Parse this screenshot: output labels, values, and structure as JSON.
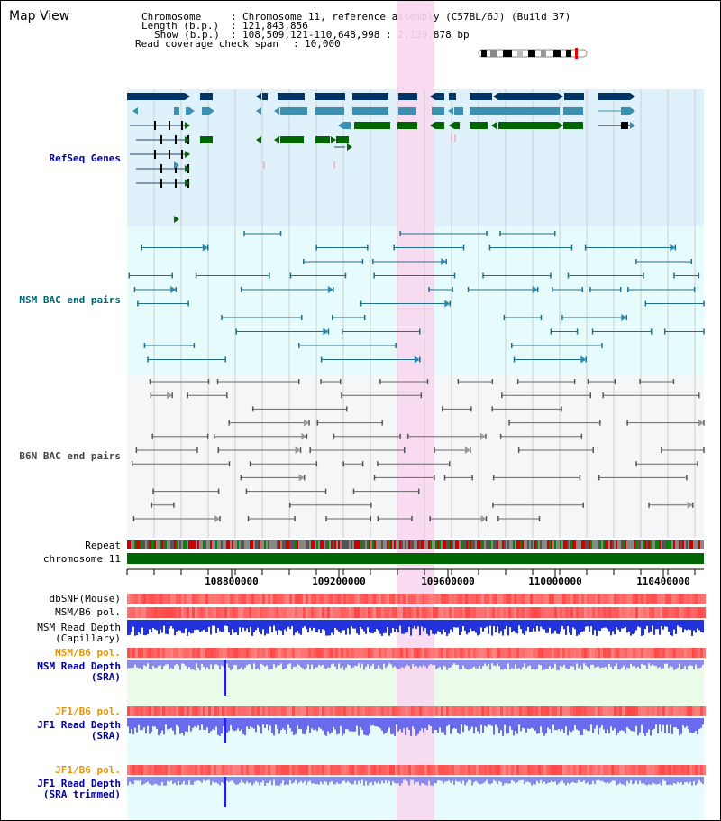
{
  "window_title": "Map View",
  "header": {
    "chromosome_label": "Chromosome",
    "chromosome_value": "Chromosome 11, reference assembly (C57BL/6J) (Build 37)",
    "length_label": "Length (b.p.)",
    "length_value": "121,843,856",
    "show_label": "Show (b.p.)",
    "show_value": "108,509,121-110,648,998 : 2,139,878 bp",
    "span_label": "Read coverage check span",
    "span_value": "10,000"
  },
  "tracks": {
    "refseq": "RefSeq Genes",
    "msm_bac": "MSM BAC end pairs",
    "b6n_bac": "B6N BAC end pairs",
    "repeat": "Repeat",
    "chromosome": "chromosome 11",
    "dbsnp": "dbSNP(Mouse)",
    "msm_b6_pol_1": "MSM/B6 pol.",
    "msm_read_depth_cap_1": "MSM Read Depth",
    "msm_read_depth_cap_2": "(Capillary)",
    "msm_b6_pol_2": "MSM/B6 pol.",
    "msm_read_depth_sra_1": "MSM Read Depth",
    "msm_read_depth_sra_2": "(SRA)",
    "jf1_b6_pol_1": "JF1/B6 pol.",
    "jf1_read_depth_sra_1": "JF1 Read Depth",
    "jf1_read_depth_sra_2": "(SRA)",
    "jf1_b6_pol_2": "JF1/B6 pol.",
    "jf1_read_depth_trim_1": "JF1 Read Depth",
    "jf1_read_depth_trim_2": "(SRA trimmed)"
  },
  "axis_ticks": [
    "108800000",
    "109200000",
    "109600000",
    "110000000",
    "110400000"
  ],
  "colors": {
    "refseq_bg": "#dff1fb",
    "msm_bg": "#e6fbfb",
    "b6n_bg": "#f4f6f8",
    "highlight": "#f8d8f0",
    "refseq_label": "#000099",
    "msm_label": "#006677",
    "b6n_label": "#444444",
    "orange_label": "#e69500",
    "blue_label": "#000099",
    "chrom_bar": "#006600",
    "capillary_depth": "#2222dd",
    "sra_depth": "#8a8aee"
  }
}
